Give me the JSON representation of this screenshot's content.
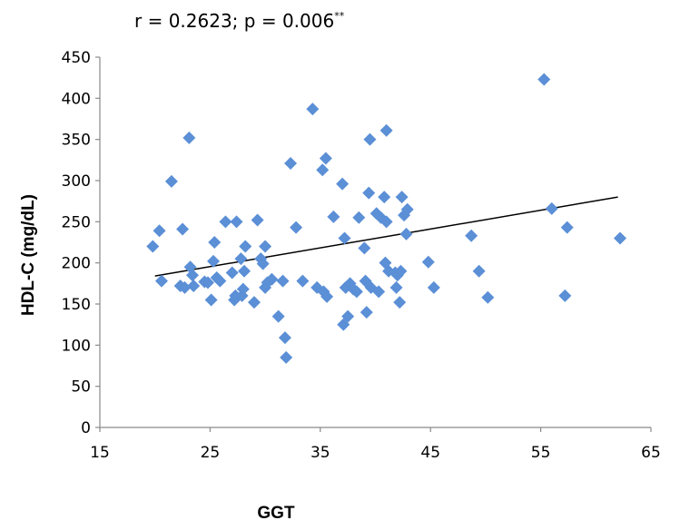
{
  "chart_data": {
    "type": "scatter",
    "annotation": {
      "main": "r = 0.2623; p = 0.006",
      "superscript": "**"
    },
    "xlabel": "GGT",
    "ylabel": "HDL-C (mg/dL)",
    "xlim": [
      15,
      65
    ],
    "ylim": [
      0,
      450
    ],
    "xticks": [
      15,
      25,
      35,
      45,
      55,
      65
    ],
    "yticks": [
      0,
      50,
      100,
      150,
      200,
      250,
      300,
      350,
      400,
      450
    ],
    "grid": false,
    "legend": "none",
    "marker_color": "#5b8fd6",
    "trendline": {
      "x": [
        20,
        62
      ],
      "y": [
        184,
        280
      ],
      "color": "#000000"
    },
    "points": [
      [
        19.8,
        220
      ],
      [
        20.4,
        239
      ],
      [
        20.6,
        178
      ],
      [
        21.5,
        299
      ],
      [
        22.3,
        172
      ],
      [
        22.5,
        241
      ],
      [
        22.7,
        170
      ],
      [
        23.1,
        352
      ],
      [
        23.2,
        195
      ],
      [
        23.4,
        185
      ],
      [
        23.5,
        172
      ],
      [
        24.5,
        177
      ],
      [
        24.8,
        176
      ],
      [
        25.1,
        155
      ],
      [
        25.3,
        202
      ],
      [
        25.4,
        225
      ],
      [
        25.6,
        182
      ],
      [
        25.9,
        178
      ],
      [
        26.4,
        250
      ],
      [
        27.0,
        188
      ],
      [
        27.2,
        155
      ],
      [
        27.3,
        160
      ],
      [
        27.4,
        250
      ],
      [
        27.8,
        205
      ],
      [
        27.9,
        160
      ],
      [
        28.0,
        168
      ],
      [
        28.1,
        190
      ],
      [
        28.2,
        220
      ],
      [
        29.0,
        152
      ],
      [
        29.3,
        252
      ],
      [
        29.6,
        205
      ],
      [
        29.8,
        199
      ],
      [
        30.0,
        220
      ],
      [
        30.0,
        170
      ],
      [
        30.2,
        176
      ],
      [
        30.6,
        180
      ],
      [
        31.2,
        135
      ],
      [
        31.6,
        178
      ],
      [
        31.8,
        109
      ],
      [
        31.9,
        85
      ],
      [
        32.3,
        321
      ],
      [
        32.8,
        243
      ],
      [
        33.4,
        178
      ],
      [
        34.3,
        387
      ],
      [
        34.7,
        170
      ],
      [
        35.2,
        313
      ],
      [
        35.3,
        165
      ],
      [
        35.5,
        327
      ],
      [
        35.6,
        159
      ],
      [
        36.2,
        256
      ],
      [
        37.0,
        296
      ],
      [
        37.1,
        125
      ],
      [
        37.2,
        230
      ],
      [
        37.3,
        170
      ],
      [
        37.5,
        135
      ],
      [
        37.7,
        175
      ],
      [
        38.0,
        168
      ],
      [
        38.3,
        165
      ],
      [
        38.5,
        255
      ],
      [
        39.0,
        218
      ],
      [
        39.1,
        178
      ],
      [
        39.2,
        140
      ],
      [
        39.4,
        285
      ],
      [
        39.5,
        350
      ],
      [
        39.6,
        170
      ],
      [
        40.1,
        260
      ],
      [
        40.3,
        165
      ],
      [
        40.5,
        255
      ],
      [
        40.8,
        280
      ],
      [
        40.9,
        200
      ],
      [
        41.0,
        250
      ],
      [
        41.0,
        361
      ],
      [
        41.2,
        190
      ],
      [
        41.8,
        188
      ],
      [
        41.9,
        170
      ],
      [
        42.0,
        185
      ],
      [
        42.2,
        152
      ],
      [
        42.3,
        190
      ],
      [
        42.4,
        280
      ],
      [
        42.6,
        258
      ],
      [
        42.8,
        235
      ],
      [
        42.9,
        265
      ],
      [
        44.8,
        201
      ],
      [
        45.3,
        170
      ],
      [
        48.7,
        233
      ],
      [
        49.4,
        190
      ],
      [
        50.2,
        158
      ],
      [
        55.3,
        423
      ],
      [
        56.0,
        266
      ],
      [
        57.2,
        160
      ],
      [
        57.4,
        243
      ],
      [
        62.2,
        230
      ]
    ]
  }
}
